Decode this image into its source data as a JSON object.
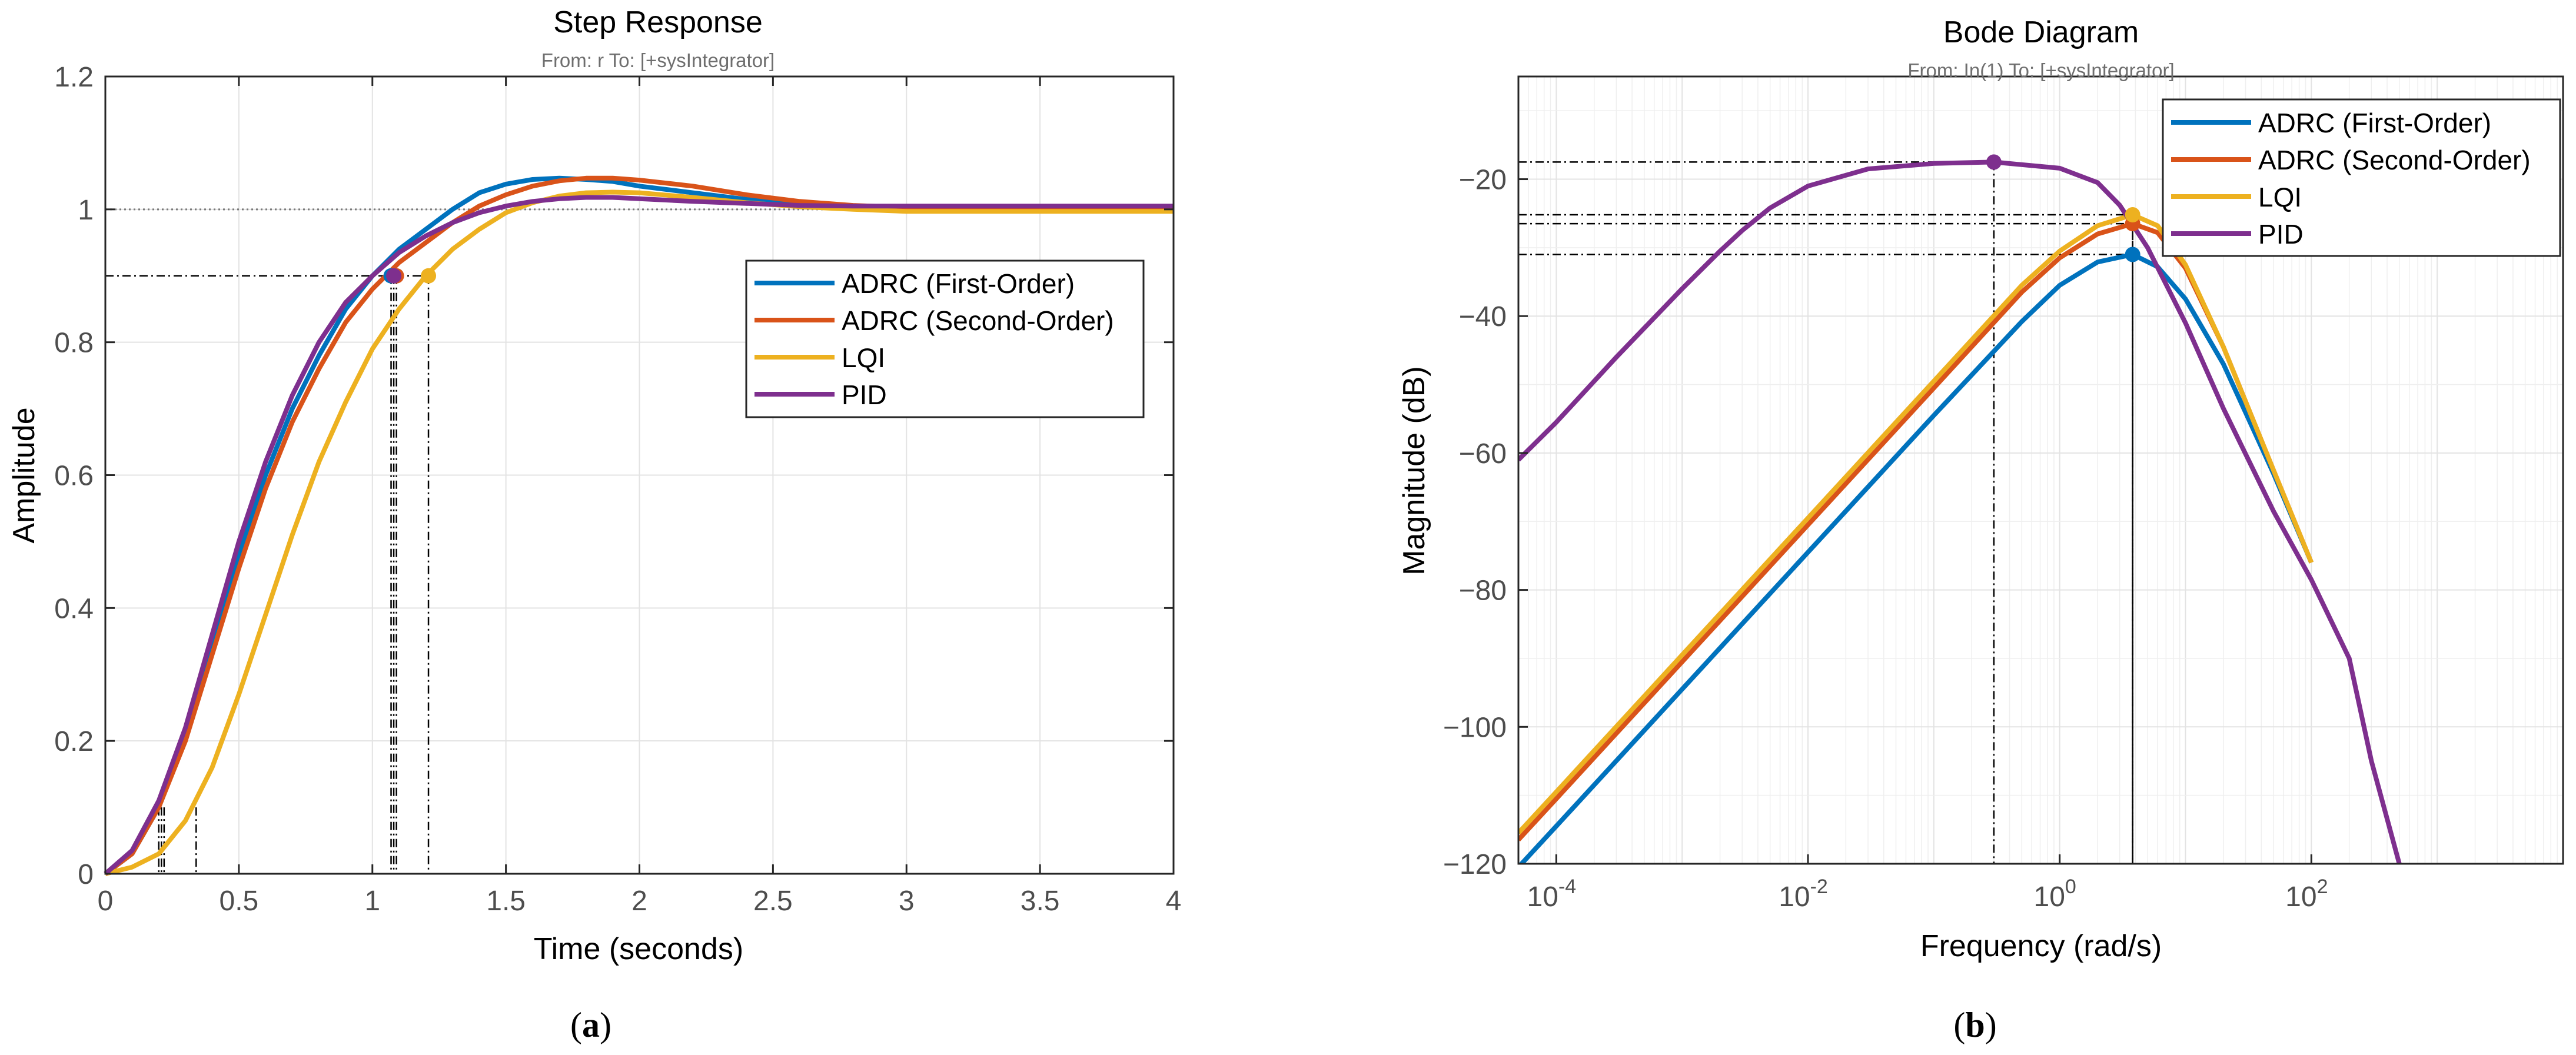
{
  "colors": {
    "adrc1": "#0072BD",
    "adrc2": "#D95319",
    "lqi": "#EDB120",
    "pid": "#7E2F8E",
    "grid": "#e3e3e3",
    "minor_grid": "#efefef",
    "axis": "#262626",
    "tick_label": "#4d4d4d",
    "annot": "#000000"
  },
  "panels": {
    "a": {
      "label_open": "(",
      "label_letter": "a",
      "label_close": ")"
    },
    "b": {
      "label_open": "(",
      "label_letter": "b",
      "label_close": ")"
    }
  },
  "chart_data": [
    {
      "id": "step",
      "type": "line",
      "title": "Step Response",
      "subtitle": "From: r  To: [+sysIntegrator]",
      "xlabel": "Time (seconds)",
      "ylabel": "Amplitude",
      "xlim": [
        0,
        4
      ],
      "ylim": [
        0,
        1.2
      ],
      "xticks": [
        0,
        0.5,
        1,
        1.5,
        2,
        2.5,
        3,
        3.5,
        4
      ],
      "xtick_labels": [
        "0",
        "0.5",
        "1",
        "1.5",
        "2",
        "2.5",
        "3",
        "3.5",
        "4"
      ],
      "yticks": [
        0,
        0.2,
        0.4,
        0.6,
        0.8,
        1,
        1.2
      ],
      "ytick_labels": [
        "0",
        "0.2",
        "0.4",
        "0.6",
        "0.8",
        "1",
        "1.2"
      ],
      "grid": true,
      "reference_line": 1.0,
      "legend_position": "center-right",
      "series": [
        {
          "name": "ADRC (First-Order)",
          "color_key": "adrc1",
          "x": [
            0,
            0.1,
            0.2,
            0.3,
            0.4,
            0.5,
            0.6,
            0.7,
            0.8,
            0.9,
            1.0,
            1.1,
            1.2,
            1.3,
            1.4,
            1.5,
            1.6,
            1.7,
            1.8,
            1.9,
            2.0,
            2.2,
            2.4,
            2.6,
            2.8,
            3.0,
            3.5,
            4.0
          ],
          "y": [
            0,
            0.03,
            0.1,
            0.21,
            0.35,
            0.48,
            0.6,
            0.7,
            0.78,
            0.85,
            0.9,
            0.94,
            0.97,
            1.0,
            1.025,
            1.038,
            1.045,
            1.047,
            1.045,
            1.042,
            1.035,
            1.025,
            1.015,
            1.008,
            1.005,
            1.003,
            1.003,
            1.003
          ],
          "annotations": [
            {
              "kind": "rise_start",
              "x": 0.21,
              "y": 0.1
            },
            {
              "kind": "rise_end",
              "x": 1.07,
              "y": 0.9
            }
          ]
        },
        {
          "name": "ADRC (Second-Order)",
          "color_key": "adrc2",
          "x": [
            0,
            0.1,
            0.2,
            0.3,
            0.4,
            0.5,
            0.6,
            0.7,
            0.8,
            0.9,
            1.0,
            1.1,
            1.2,
            1.3,
            1.4,
            1.5,
            1.6,
            1.7,
            1.8,
            1.9,
            2.0,
            2.2,
            2.4,
            2.6,
            2.8,
            3.0,
            3.5,
            4.0
          ],
          "y": [
            0,
            0.03,
            0.1,
            0.2,
            0.33,
            0.46,
            0.58,
            0.68,
            0.76,
            0.83,
            0.88,
            0.92,
            0.95,
            0.98,
            1.005,
            1.022,
            1.035,
            1.043,
            1.047,
            1.047,
            1.044,
            1.035,
            1.022,
            1.012,
            1.006,
            1.003,
            1.003,
            1.003
          ],
          "annotations": [
            {
              "kind": "rise_start",
              "x": 0.22,
              "y": 0.1
            },
            {
              "kind": "rise_end",
              "x": 1.09,
              "y": 0.9
            }
          ]
        },
        {
          "name": "LQI",
          "color_key": "lqi",
          "x": [
            0,
            0.1,
            0.2,
            0.3,
            0.4,
            0.5,
            0.6,
            0.7,
            0.8,
            0.9,
            1.0,
            1.1,
            1.2,
            1.3,
            1.4,
            1.5,
            1.6,
            1.7,
            1.8,
            1.9,
            2.0,
            2.2,
            2.4,
            2.6,
            2.8,
            3.0,
            3.5,
            4.0
          ],
          "y": [
            0,
            0.01,
            0.03,
            0.08,
            0.16,
            0.27,
            0.39,
            0.51,
            0.62,
            0.71,
            0.79,
            0.85,
            0.9,
            0.94,
            0.97,
            0.995,
            1.01,
            1.02,
            1.025,
            1.026,
            1.025,
            1.018,
            1.01,
            1.004,
            1.0,
            0.997,
            0.997,
            0.997
          ],
          "annotations": [
            {
              "kind": "rise_start",
              "x": 0.34,
              "y": 0.1
            },
            {
              "kind": "rise_end",
              "x": 1.21,
              "y": 0.9
            }
          ]
        },
        {
          "name": "PID",
          "color_key": "pid",
          "x": [
            0,
            0.1,
            0.2,
            0.3,
            0.4,
            0.5,
            0.6,
            0.7,
            0.8,
            0.9,
            1.0,
            1.1,
            1.2,
            1.3,
            1.4,
            1.5,
            1.6,
            1.7,
            1.8,
            1.9,
            2.0,
            2.2,
            2.4,
            2.6,
            2.8,
            3.0,
            3.5,
            4.0
          ],
          "y": [
            0,
            0.035,
            0.11,
            0.22,
            0.36,
            0.5,
            0.62,
            0.72,
            0.8,
            0.86,
            0.9,
            0.935,
            0.96,
            0.98,
            0.995,
            1.005,
            1.012,
            1.016,
            1.018,
            1.018,
            1.016,
            1.012,
            1.009,
            1.006,
            1.005,
            1.005,
            1.005,
            1.005
          ],
          "annotations": [
            {
              "kind": "rise_start",
              "x": 0.2,
              "y": 0.1
            },
            {
              "kind": "rise_end",
              "x": 1.08,
              "y": 0.9
            }
          ]
        }
      ]
    },
    {
      "id": "bode",
      "type": "line",
      "title": "Bode Diagram",
      "subtitle": "From: In(1)  To: [+sysIntegrator]",
      "xlabel": "Frequency  (rad/s)",
      "ylabel": "Magnitude (dB)",
      "xscale": "log",
      "xlim": [
        5e-05,
        10000
      ],
      "ylim": [
        -120,
        -5
      ],
      "xticks": [
        0.0001,
        0.01,
        1,
        100
      ],
      "xtick_labels": [
        {
          "base": "10",
          "exp": "-4"
        },
        {
          "base": "10",
          "exp": "-2"
        },
        {
          "base": "10",
          "exp": "0"
        },
        {
          "base": "10",
          "exp": "2"
        }
      ],
      "yticks": [
        -120,
        -100,
        -80,
        -60,
        -40,
        -20
      ],
      "ytick_labels": [
        "−120",
        "−100",
        "−80",
        "−60",
        "−40",
        "−20"
      ],
      "grid": true,
      "legend_position": "top-right",
      "series": [
        {
          "name": "ADRC (First-Order)",
          "color_key": "adrc1",
          "x": [
            5e-05,
            0.0001,
            0.001,
            0.01,
            0.1,
            0.5,
            1,
            2,
            3.8,
            6,
            10,
            20,
            50,
            100
          ],
          "y": [
            -120.5,
            -114.5,
            -94.5,
            -74.5,
            -54.5,
            -40.8,
            -35.5,
            -32.1,
            -31.0,
            -32.8,
            -37.5,
            -47,
            -63,
            -76
          ],
          "annotations": [
            {
              "kind": "peak",
              "x": 3.8,
              "y": -31.0
            }
          ]
        },
        {
          "name": "ADRC (Second-Order)",
          "color_key": "adrc2",
          "x": [
            5e-05,
            0.0001,
            0.001,
            0.01,
            0.1,
            0.5,
            1,
            2,
            3.8,
            6,
            10,
            20,
            50,
            100
          ],
          "y": [
            -116.5,
            -110.5,
            -90.5,
            -70.5,
            -50.5,
            -36.5,
            -31.5,
            -28.0,
            -26.5,
            -27.8,
            -33,
            -44.5,
            -62.5,
            -76
          ],
          "annotations": [
            {
              "kind": "peak",
              "x": 3.8,
              "y": -26.5
            }
          ]
        },
        {
          "name": "LQI",
          "color_key": "lqi",
          "x": [
            5e-05,
            0.0001,
            0.001,
            0.01,
            0.1,
            0.5,
            1,
            2,
            3.8,
            6,
            10,
            20,
            50,
            100
          ],
          "y": [
            -115.5,
            -109.5,
            -89.5,
            -69.5,
            -49.5,
            -35.5,
            -30.5,
            -26.8,
            -25.2,
            -26.8,
            -32.5,
            -44.5,
            -62.5,
            -76
          ],
          "annotations": [
            {
              "kind": "peak",
              "x": 3.8,
              "y": -25.2
            }
          ]
        },
        {
          "name": "PID",
          "color_key": "pid",
          "x": [
            5e-05,
            0.0001,
            0.0003,
            0.001,
            0.002,
            0.003,
            0.005,
            0.01,
            0.03,
            0.1,
            0.3,
            1,
            2,
            3,
            5,
            10,
            20,
            50,
            100,
            200,
            300,
            500
          ],
          "y": [
            -61,
            -55.5,
            -46,
            -36,
            -30.5,
            -27.5,
            -24.2,
            -21,
            -18.5,
            -17.7,
            -17.5,
            -18.4,
            -20.5,
            -23.8,
            -30,
            -41,
            -53.5,
            -68.5,
            -78.5,
            -90,
            -105,
            -120
          ],
          "annotations": [
            {
              "kind": "peak",
              "x": 0.3,
              "y": -17.5
            }
          ]
        }
      ]
    }
  ]
}
